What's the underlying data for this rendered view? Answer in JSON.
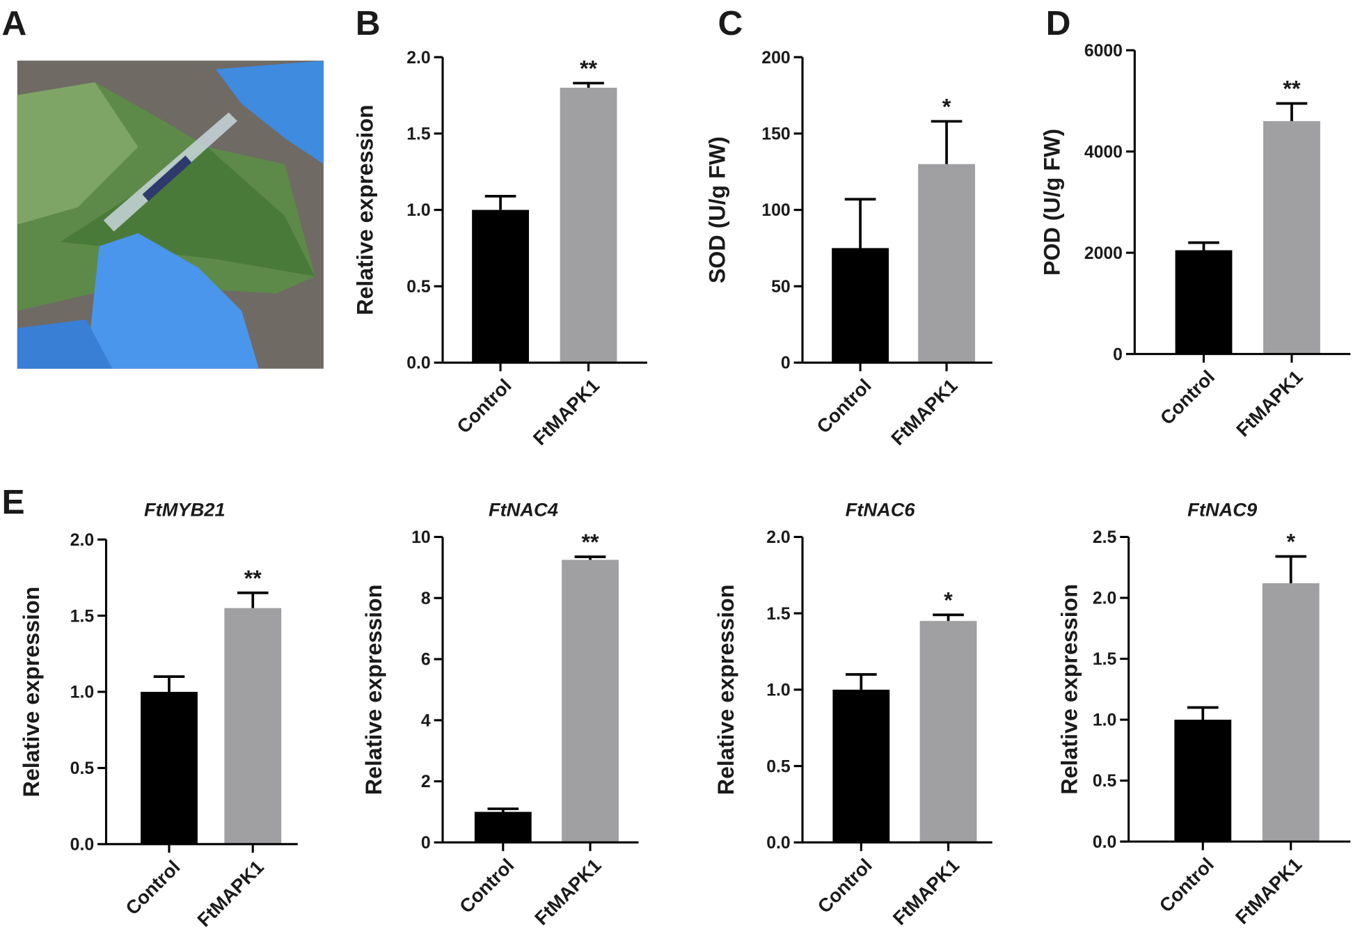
{
  "photo_panel": "A",
  "chart_data": [
    {
      "type": "bar",
      "panel": "B",
      "ylabel": "Relative expression",
      "categories": [
        "Control",
        "FtMAPK1"
      ],
      "values": [
        1.0,
        1.8
      ],
      "errors": [
        0.09,
        0.03
      ],
      "colors": [
        "#000000",
        "#a0a0a3"
      ],
      "annotation": "**",
      "ylim": [
        0,
        2
      ],
      "yticks": [
        {
          "value": 0,
          "label": "0.0"
        },
        {
          "value": 0.5,
          "label": "0.5"
        },
        {
          "value": 1,
          "label": "1.0"
        },
        {
          "value": 1.5,
          "label": "1.5"
        },
        {
          "value": 2,
          "label": "2.0"
        }
      ]
    },
    {
      "type": "bar",
      "panel": "C",
      "ylabel": "SOD (U/g FW)",
      "categories": [
        "Control",
        "FtMAPK1"
      ],
      "values": [
        75,
        130
      ],
      "errors": [
        32,
        28
      ],
      "colors": [
        "#000000",
        "#a0a0a3"
      ],
      "annotation": "*",
      "ylim": [
        0,
        200
      ],
      "yticks": [
        0,
        50,
        100,
        150,
        200
      ]
    },
    {
      "type": "bar",
      "panel": "D",
      "ylabel": "POD (U/g FW)",
      "categories": [
        "Control",
        "FtMAPK1"
      ],
      "values": [
        2050,
        4600
      ],
      "errors": [
        150,
        350
      ],
      "colors": [
        "#000000",
        "#a0a0a3"
      ],
      "annotation": "**",
      "ylim": [
        0,
        6000
      ],
      "yticks": [
        0,
        2000,
        4000,
        6000
      ]
    },
    {
      "type": "bar",
      "panel": "E",
      "title": "FtMYB21",
      "ylabel": "Relative expression",
      "categories": [
        "Control",
        "FtMAPK1"
      ],
      "values": [
        1.0,
        1.55
      ],
      "errors": [
        0.1,
        0.1
      ],
      "colors": [
        "#000000",
        "#a0a0a3"
      ],
      "annotation": "**",
      "ylim": [
        0,
        2
      ],
      "yticks": [
        {
          "value": 0,
          "label": "0.0"
        },
        {
          "value": 0.5,
          "label": "0.5"
        },
        {
          "value": 1,
          "label": "1.0"
        },
        {
          "value": 1.5,
          "label": "1.5"
        },
        {
          "value": 2,
          "label": "2.0"
        }
      ]
    },
    {
      "type": "bar",
      "title": "FtNAC4",
      "ylabel": "Relative expression",
      "categories": [
        "Control",
        "FtMAPK1"
      ],
      "values": [
        1.0,
        9.25
      ],
      "errors": [
        0.1,
        0.1
      ],
      "colors": [
        "#000000",
        "#a0a0a3"
      ],
      "annotation": "**",
      "ylim": [
        0,
        10
      ],
      "yticks": [
        0,
        2,
        4,
        6,
        8,
        10
      ]
    },
    {
      "type": "bar",
      "title": "FtNAC6",
      "ylabel": "Relative expression",
      "categories": [
        "Control",
        "FtMAPK1"
      ],
      "values": [
        1.0,
        1.45
      ],
      "errors": [
        0.1,
        0.04
      ],
      "colors": [
        "#000000",
        "#a0a0a3"
      ],
      "annotation": "*",
      "ylim": [
        0,
        2
      ],
      "yticks": [
        {
          "value": 0,
          "label": "0.0"
        },
        {
          "value": 0.5,
          "label": "0.5"
        },
        {
          "value": 1,
          "label": "1.0"
        },
        {
          "value": 1.5,
          "label": "1.5"
        },
        {
          "value": 2,
          "label": "2.0"
        }
      ]
    },
    {
      "type": "bar",
      "title": "FtNAC9",
      "ylabel": "Relative expression",
      "categories": [
        "Control",
        "FtMAPK1"
      ],
      "values": [
        1.0,
        2.12
      ],
      "errors": [
        0.1,
        0.22
      ],
      "colors": [
        "#000000",
        "#a0a0a3"
      ],
      "annotation": "*",
      "ylim": [
        0,
        2.5
      ],
      "yticks": [
        {
          "value": 0,
          "label": "0.0"
        },
        {
          "value": 0.5,
          "label": "0.5"
        },
        {
          "value": 1,
          "label": "1.0"
        },
        {
          "value": 1.5,
          "label": "1.5"
        },
        {
          "value": 2,
          "label": "2.0"
        },
        {
          "value": 2.5,
          "label": "2.5"
        }
      ]
    }
  ]
}
